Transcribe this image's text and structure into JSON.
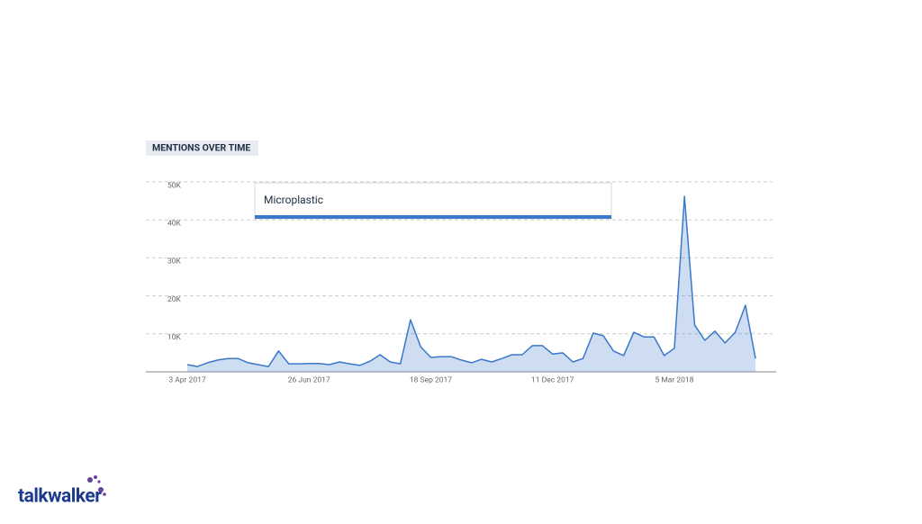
{
  "chart_data": {
    "type": "area",
    "title": "MENTIONS OVER TIME",
    "categories": [
      "3 Apr 2017",
      null,
      null,
      null,
      null,
      null,
      null,
      null,
      null,
      null,
      null,
      null,
      "26 Jun 2017",
      null,
      null,
      null,
      null,
      null,
      null,
      null,
      null,
      null,
      null,
      null,
      "18 Sep 2017",
      null,
      null,
      null,
      null,
      null,
      null,
      null,
      null,
      null,
      null,
      null,
      "11 Dec 2017",
      null,
      null,
      null,
      null,
      null,
      null,
      null,
      null,
      null,
      null,
      null,
      "5 Mar 2018",
      null,
      null,
      null,
      null,
      null,
      null,
      null,
      null
    ],
    "series": [
      {
        "name": "Microplastic",
        "color": "#3a78c9",
        "values": [
          1900,
          1400,
          2400,
          3100,
          3500,
          3500,
          2400,
          1900,
          1400,
          5500,
          2100,
          2100,
          2200,
          2200,
          1900,
          2600,
          2100,
          1700,
          2800,
          4500,
          2600,
          2100,
          13700,
          6600,
          3800,
          4000,
          4000,
          3100,
          2400,
          3300,
          2600,
          3500,
          4500,
          4500,
          6900,
          6900,
          4700,
          5000,
          2600,
          3500,
          10200,
          9500,
          5500,
          4300,
          10400,
          9200,
          9200,
          4300,
          6200,
          46200,
          12300,
          8300,
          10700,
          7600,
          10400,
          17500,
          3500
        ]
      }
    ],
    "ylim": [
      0,
      50000
    ],
    "yticks": [
      {
        "value": 10000,
        "label": "10K"
      },
      {
        "value": 20000,
        "label": "20K"
      },
      {
        "value": 30000,
        "label": "30K"
      },
      {
        "value": 40000,
        "label": "40K"
      },
      {
        "value": 50000,
        "label": "50K"
      }
    ],
    "grid": true
  },
  "logo": "talkwalker"
}
